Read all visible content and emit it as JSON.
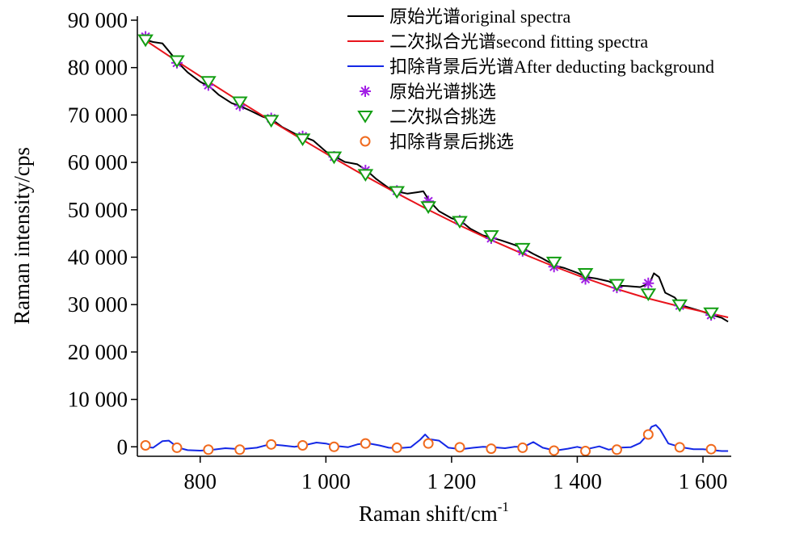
{
  "chart_data": {
    "type": "line",
    "xlabel": "Raman shift/cm",
    "xlabel_sup": "-1",
    "ylabel": "Raman intensity/cps",
    "xlim": [
      700,
      1645
    ],
    "ylim": [
      -2000,
      90000
    ],
    "x_ticks": [
      800,
      1000,
      1200,
      1400,
      1600
    ],
    "x_tick_labels": [
      "800",
      "1 000",
      "1 200",
      "1 400",
      "1 600"
    ],
    "y_ticks": [
      0,
      10000,
      20000,
      30000,
      40000,
      50000,
      60000,
      70000,
      80000,
      90000
    ],
    "y_tick_labels": [
      "0",
      "10 000",
      "20 000",
      "30 000",
      "40 000",
      "50 000",
      "60 000",
      "70 000",
      "80 000",
      "90 000"
    ],
    "grid": false,
    "legend_position": "top-right",
    "legend": [
      {
        "label": "原始光谱original spectra",
        "kind": "line",
        "color": "#000000"
      },
      {
        "label": "二次拟合光谱second fitting spectra",
        "kind": "line",
        "color": "#e8141c"
      },
      {
        "label": "扣除背景后光谱After deducting background",
        "kind": "line",
        "color": "#1428e6"
      },
      {
        "label": "原始光谱挑选",
        "kind": "asterisk",
        "color": "#a21ee6"
      },
      {
        "label": "二次拟合挑选",
        "kind": "triangle",
        "color": "#129e12"
      },
      {
        "label": "扣除背景后挑选",
        "kind": "circle",
        "color": "#f06a1e"
      }
    ],
    "series": [
      {
        "name": "原始光谱original spectra",
        "color": "#000000",
        "x": [
          710,
          725,
          740,
          750,
          765,
          780,
          800,
          815,
          830,
          850,
          865,
          880,
          900,
          915,
          930,
          950,
          965,
          980,
          1000,
          1015,
          1030,
          1050,
          1065,
          1080,
          1100,
          1115,
          1130,
          1145,
          1155,
          1165,
          1180,
          1200,
          1215,
          1230,
          1250,
          1265,
          1280,
          1300,
          1315,
          1330,
          1345,
          1365,
          1380,
          1400,
          1415,
          1430,
          1450,
          1465,
          1480,
          1500,
          1515,
          1522,
          1530,
          1540,
          1555,
          1565,
          1580,
          1600,
          1615,
          1630,
          1640
        ],
        "y": [
          86000,
          85400,
          85100,
          83500,
          81000,
          79000,
          77000,
          76000,
          74200,
          72500,
          71800,
          70900,
          69600,
          69000,
          67500,
          66100,
          65400,
          64600,
          62300,
          61200,
          60100,
          59600,
          58300,
          56500,
          54600,
          53800,
          53400,
          53700,
          53900,
          51800,
          49700,
          48200,
          47600,
          46000,
          44600,
          44100,
          43500,
          42600,
          41800,
          40700,
          39700,
          38200,
          37700,
          36700,
          35800,
          35500,
          34900,
          34000,
          33900,
          33700,
          34500,
          36600,
          35800,
          32500,
          31500,
          29900,
          29300,
          28500,
          27800,
          27200,
          26400
        ]
      },
      {
        "name": "二次拟合光谱second fitting spectra",
        "color": "#e8141c",
        "x": [
          710,
          760,
          810,
          860,
          910,
          960,
          1010,
          1060,
          1110,
          1160,
          1210,
          1260,
          1310,
          1360,
          1410,
          1460,
          1510,
          1560,
          1610,
          1640
        ],
        "y": [
          86000,
          81600,
          77300,
          73100,
          69000,
          65000,
          61100,
          57300,
          53700,
          50200,
          46900,
          43800,
          40900,
          38200,
          35700,
          33400,
          31400,
          29700,
          28200,
          27300
        ]
      },
      {
        "name": "扣除背景后光谱After deducting background",
        "color": "#1428e6",
        "x": [
          710,
          725,
          740,
          750,
          765,
          780,
          800,
          815,
          840,
          865,
          890,
          910,
          930,
          950,
          965,
          985,
          1000,
          1015,
          1035,
          1050,
          1065,
          1085,
          1100,
          1115,
          1135,
          1150,
          1158,
          1165,
          1180,
          1195,
          1215,
          1235,
          1250,
          1265,
          1285,
          1300,
          1315,
          1330,
          1345,
          1365,
          1385,
          1400,
          1415,
          1435,
          1450,
          1465,
          1485,
          1500,
          1510,
          1518,
          1525,
          1532,
          1545,
          1565,
          1585,
          1600,
          1615,
          1630,
          1640
        ],
        "y": [
          0,
          -200,
          1200,
          1300,
          -200,
          -700,
          -800,
          -700,
          -300,
          -500,
          -200,
          500,
          300,
          0,
          300,
          900,
          700,
          200,
          -100,
          500,
          800,
          300,
          -200,
          -300,
          -100,
          1500,
          2600,
          1600,
          1300,
          -200,
          -500,
          -200,
          0,
          -100,
          -300,
          0,
          0,
          1000,
          -200,
          -800,
          -400,
          0,
          -500,
          100,
          -600,
          -200,
          -100,
          800,
          2300,
          4200,
          4600,
          3600,
          700,
          -100,
          -500,
          -500,
          -700,
          -900,
          -900
        ]
      }
    ],
    "picks": [
      {
        "name": "原始光谱挑选",
        "marker": "asterisk",
        "color": "#a21ee6",
        "x": [
          713,
          763,
          813,
          863,
          913,
          963,
          1013,
          1063,
          1113,
          1163,
          1213,
          1263,
          1313,
          1363,
          1413,
          1463,
          1513,
          1563,
          1613
        ],
        "y": [
          86500,
          81000,
          76300,
          72000,
          69300,
          65500,
          61200,
          58300,
          54000,
          51800,
          47700,
          44000,
          41300,
          38000,
          35400,
          33600,
          34500,
          29800,
          27800
        ]
      },
      {
        "name": "二次拟合挑选",
        "marker": "triangle",
        "color": "#129e12",
        "x": [
          713,
          763,
          813,
          863,
          913,
          963,
          1013,
          1063,
          1113,
          1163,
          1213,
          1263,
          1313,
          1363,
          1413,
          1463,
          1513,
          1563,
          1613
        ],
        "y": [
          85800,
          81400,
          77000,
          72700,
          68800,
          64900,
          61100,
          57400,
          53800,
          50600,
          47500,
          44500,
          41800,
          38900,
          36500,
          34200,
          32200,
          29900,
          28200
        ]
      },
      {
        "name": "扣除背景后挑选",
        "marker": "circle",
        "color": "#f06a1e",
        "x": [
          713,
          763,
          813,
          863,
          913,
          963,
          1013,
          1063,
          1113,
          1163,
          1213,
          1263,
          1313,
          1363,
          1413,
          1463,
          1513,
          1563,
          1613
        ],
        "y": [
          300,
          -200,
          -600,
          -600,
          500,
          300,
          0,
          700,
          -200,
          700,
          -100,
          -400,
          -200,
          -800,
          -900,
          -600,
          2600,
          -100,
          -500
        ]
      }
    ]
  }
}
